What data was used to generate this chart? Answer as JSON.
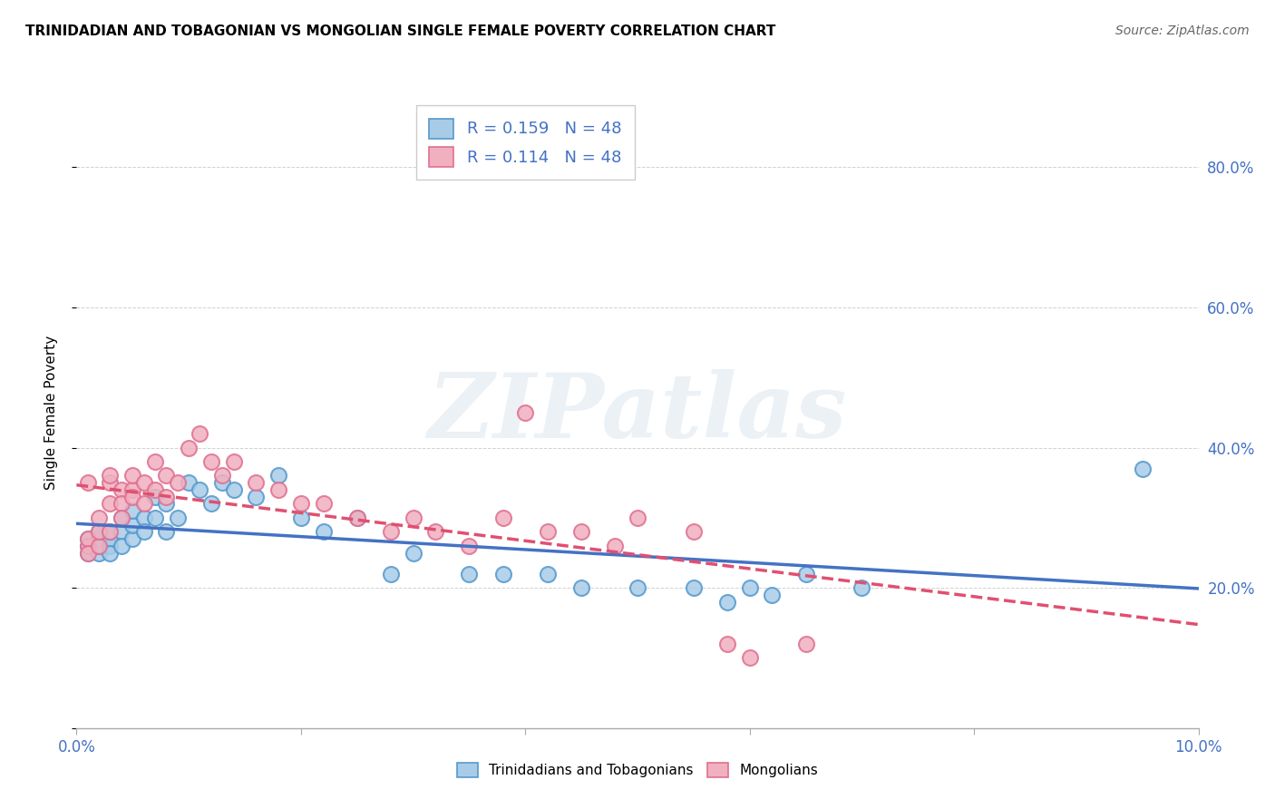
{
  "title": "TRINIDADIAN AND TOBAGONIAN VS MONGOLIAN SINGLE FEMALE POVERTY CORRELATION CHART",
  "source": "Source: ZipAtlas.com",
  "ylabel": "Single Female Poverty",
  "xlim": [
    0.0,
    0.1
  ],
  "ylim": [
    0.0,
    0.9
  ],
  "xticks": [
    0.0,
    0.02,
    0.04,
    0.06,
    0.08,
    0.1
  ],
  "xtick_labels_show": [
    "0.0%",
    "",
    "",
    "",
    "",
    "10.0%"
  ],
  "yticks": [
    0.0,
    0.2,
    0.4,
    0.6,
    0.8
  ],
  "ytick_labels_right": [
    "",
    "20.0%",
    "40.0%",
    "60.0%",
    "80.0%"
  ],
  "blue_scatter_color": "#a8cce8",
  "blue_edge_color": "#5599cc",
  "pink_scatter_color": "#f0b0c0",
  "pink_edge_color": "#e07090",
  "blue_line_color": "#4472c4",
  "pink_line_color": "#e05070",
  "legend_R_blue": "R = 0.159",
  "legend_N_blue": "N = 48",
  "legend_R_pink": "R = 0.114",
  "legend_N_pink": "N = 48",
  "watermark": "ZIPatlas",
  "legend_label_blue": "Trinidadians and Tobagonians",
  "legend_label_pink": "Mongolians",
  "trinidadian_x": [
    0.001,
    0.001,
    0.001,
    0.002,
    0.002,
    0.002,
    0.002,
    0.003,
    0.003,
    0.003,
    0.003,
    0.004,
    0.004,
    0.004,
    0.005,
    0.005,
    0.005,
    0.006,
    0.006,
    0.007,
    0.007,
    0.008,
    0.008,
    0.009,
    0.01,
    0.011,
    0.012,
    0.013,
    0.014,
    0.016,
    0.018,
    0.02,
    0.022,
    0.025,
    0.028,
    0.03,
    0.035,
    0.038,
    0.042,
    0.045,
    0.05,
    0.055,
    0.058,
    0.06,
    0.062,
    0.065,
    0.07,
    0.095
  ],
  "trinidadian_y": [
    0.26,
    0.27,
    0.25,
    0.25,
    0.27,
    0.26,
    0.28,
    0.26,
    0.27,
    0.25,
    0.28,
    0.3,
    0.28,
    0.26,
    0.27,
    0.29,
    0.31,
    0.3,
    0.28,
    0.33,
    0.3,
    0.32,
    0.28,
    0.3,
    0.35,
    0.34,
    0.32,
    0.35,
    0.34,
    0.33,
    0.36,
    0.3,
    0.28,
    0.3,
    0.22,
    0.25,
    0.22,
    0.22,
    0.22,
    0.2,
    0.2,
    0.2,
    0.18,
    0.2,
    0.19,
    0.22,
    0.2,
    0.37
  ],
  "mongolian_x": [
    0.001,
    0.001,
    0.001,
    0.001,
    0.002,
    0.002,
    0.002,
    0.003,
    0.003,
    0.003,
    0.003,
    0.004,
    0.004,
    0.004,
    0.005,
    0.005,
    0.005,
    0.006,
    0.006,
    0.007,
    0.007,
    0.008,
    0.008,
    0.009,
    0.01,
    0.011,
    0.012,
    0.013,
    0.014,
    0.016,
    0.018,
    0.02,
    0.022,
    0.025,
    0.028,
    0.03,
    0.032,
    0.035,
    0.038,
    0.04,
    0.042,
    0.045,
    0.048,
    0.05,
    0.055,
    0.058,
    0.06,
    0.065
  ],
  "mongolian_y": [
    0.26,
    0.27,
    0.25,
    0.35,
    0.26,
    0.28,
    0.3,
    0.28,
    0.32,
    0.35,
    0.36,
    0.34,
    0.32,
    0.3,
    0.34,
    0.33,
    0.36,
    0.35,
    0.32,
    0.38,
    0.34,
    0.36,
    0.33,
    0.35,
    0.4,
    0.42,
    0.38,
    0.36,
    0.38,
    0.35,
    0.34,
    0.32,
    0.32,
    0.3,
    0.28,
    0.3,
    0.28,
    0.26,
    0.3,
    0.45,
    0.28,
    0.28,
    0.26,
    0.3,
    0.28,
    0.12,
    0.1,
    0.12
  ]
}
